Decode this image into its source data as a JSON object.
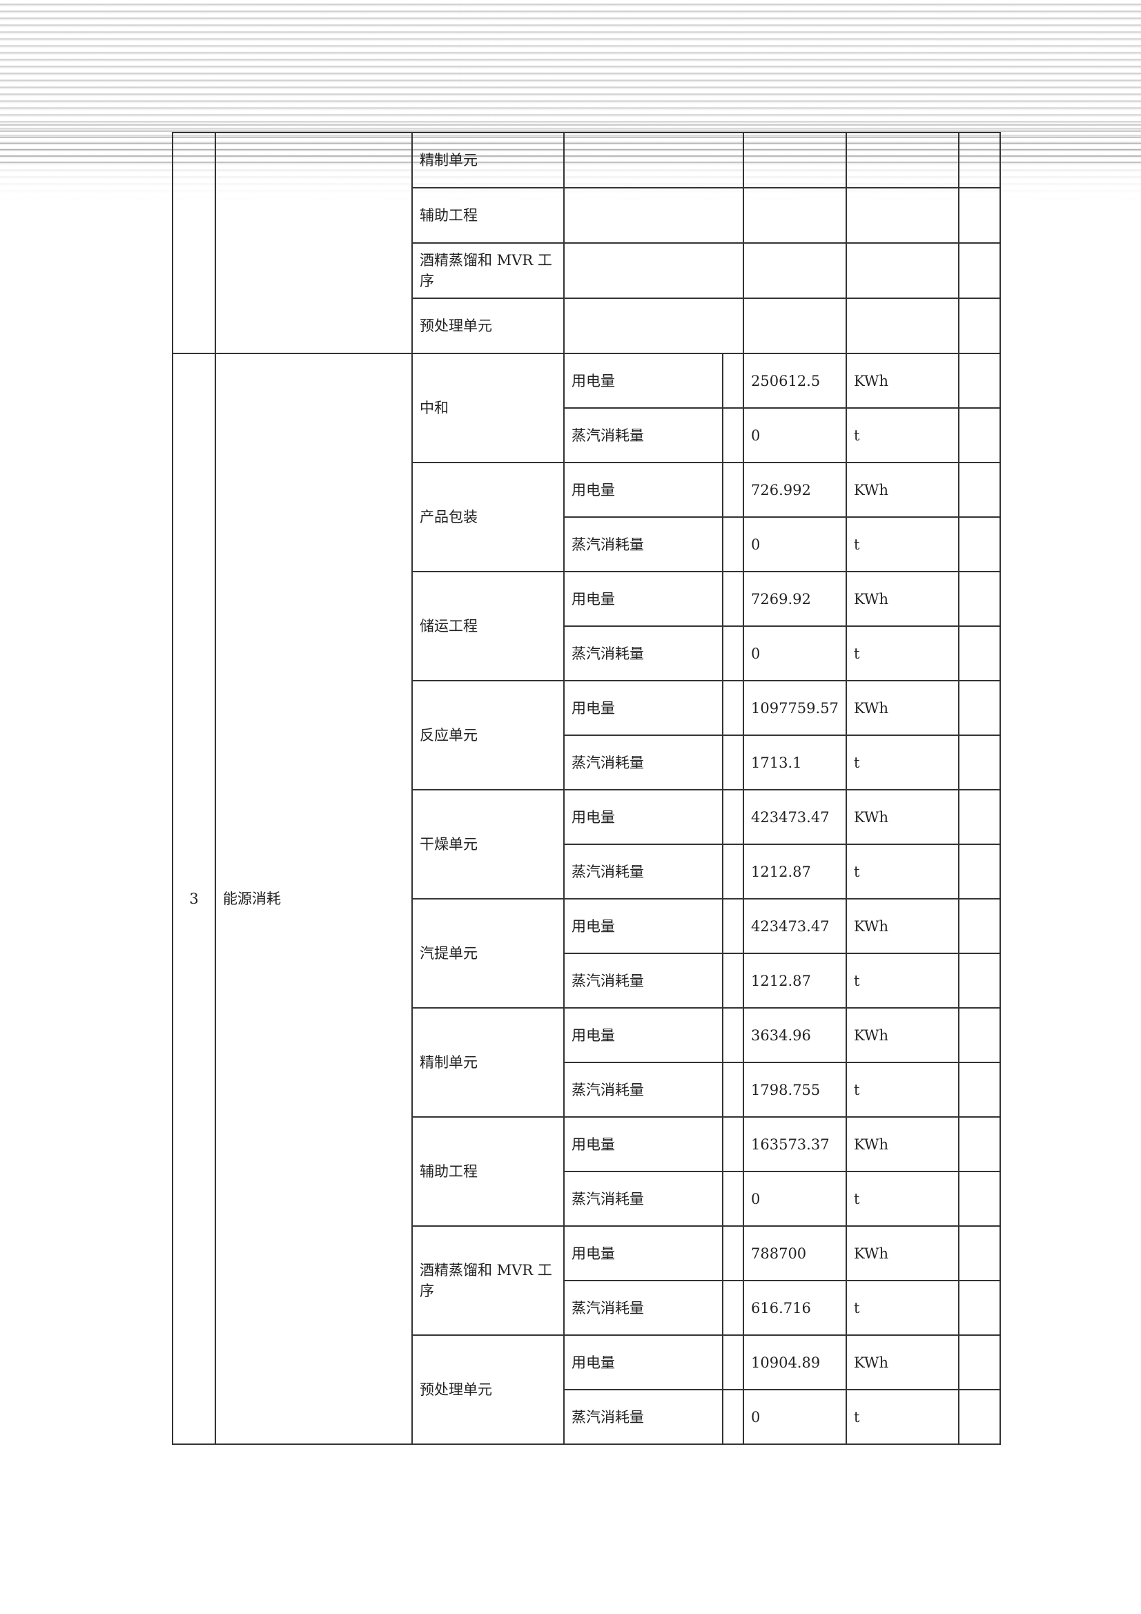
{
  "top_rows": [
    "精制单元",
    "辅助工程",
    "酒精蒸馏和 MVR 工序",
    "预处理单元"
  ],
  "section": {
    "no": "3",
    "name": "能源消耗",
    "groups": [
      {
        "name": "中和",
        "rows": [
          {
            "item": "用电量",
            "value": "250612.5",
            "unit": "KWh"
          },
          {
            "item": "蒸汽消耗量",
            "value": "0",
            "unit": "t"
          }
        ]
      },
      {
        "name": "产品包装",
        "rows": [
          {
            "item": "用电量",
            "value": "726.992",
            "unit": "KWh"
          },
          {
            "item": "蒸汽消耗量",
            "value": "0",
            "unit": "t"
          }
        ]
      },
      {
        "name": "储运工程",
        "rows": [
          {
            "item": "用电量",
            "value": "7269.92",
            "unit": "KWh"
          },
          {
            "item": "蒸汽消耗量",
            "value": "0",
            "unit": "t"
          }
        ]
      },
      {
        "name": "反应单元",
        "rows": [
          {
            "item": "用电量",
            "value": "1097759.57",
            "unit": "KWh"
          },
          {
            "item": "蒸汽消耗量",
            "value": "1713.1",
            "unit": "t"
          }
        ]
      },
      {
        "name": "干燥单元",
        "rows": [
          {
            "item": "用电量",
            "value": "423473.47",
            "unit": "KWh"
          },
          {
            "item": "蒸汽消耗量",
            "value": "1212.87",
            "unit": "t"
          }
        ]
      },
      {
        "name": "汽提单元",
        "rows": [
          {
            "item": "用电量",
            "value": "423473.47",
            "unit": "KWh"
          },
          {
            "item": "蒸汽消耗量",
            "value": "1212.87",
            "unit": "t"
          }
        ]
      },
      {
        "name": "精制单元",
        "rows": [
          {
            "item": "用电量",
            "value": "3634.96",
            "unit": "KWh"
          },
          {
            "item": "蒸汽消耗量",
            "value": "1798.755",
            "unit": "t"
          }
        ]
      },
      {
        "name": "辅助工程",
        "rows": [
          {
            "item": "用电量",
            "value": "163573.37",
            "unit": "KWh"
          },
          {
            "item": "蒸汽消耗量",
            "value": "0",
            "unit": "t"
          }
        ]
      },
      {
        "name": "酒精蒸馏和 MVR 工序",
        "rows": [
          {
            "item": "用电量",
            "value": "788700",
            "unit": "KWh"
          },
          {
            "item": "蒸汽消耗量",
            "value": "616.716",
            "unit": "t"
          }
        ]
      },
      {
        "name": "预处理单元",
        "rows": [
          {
            "item": "用电量",
            "value": "10904.89",
            "unit": "KWh"
          },
          {
            "item": "蒸汽消耗量",
            "value": "0",
            "unit": "t"
          }
        ]
      }
    ]
  }
}
